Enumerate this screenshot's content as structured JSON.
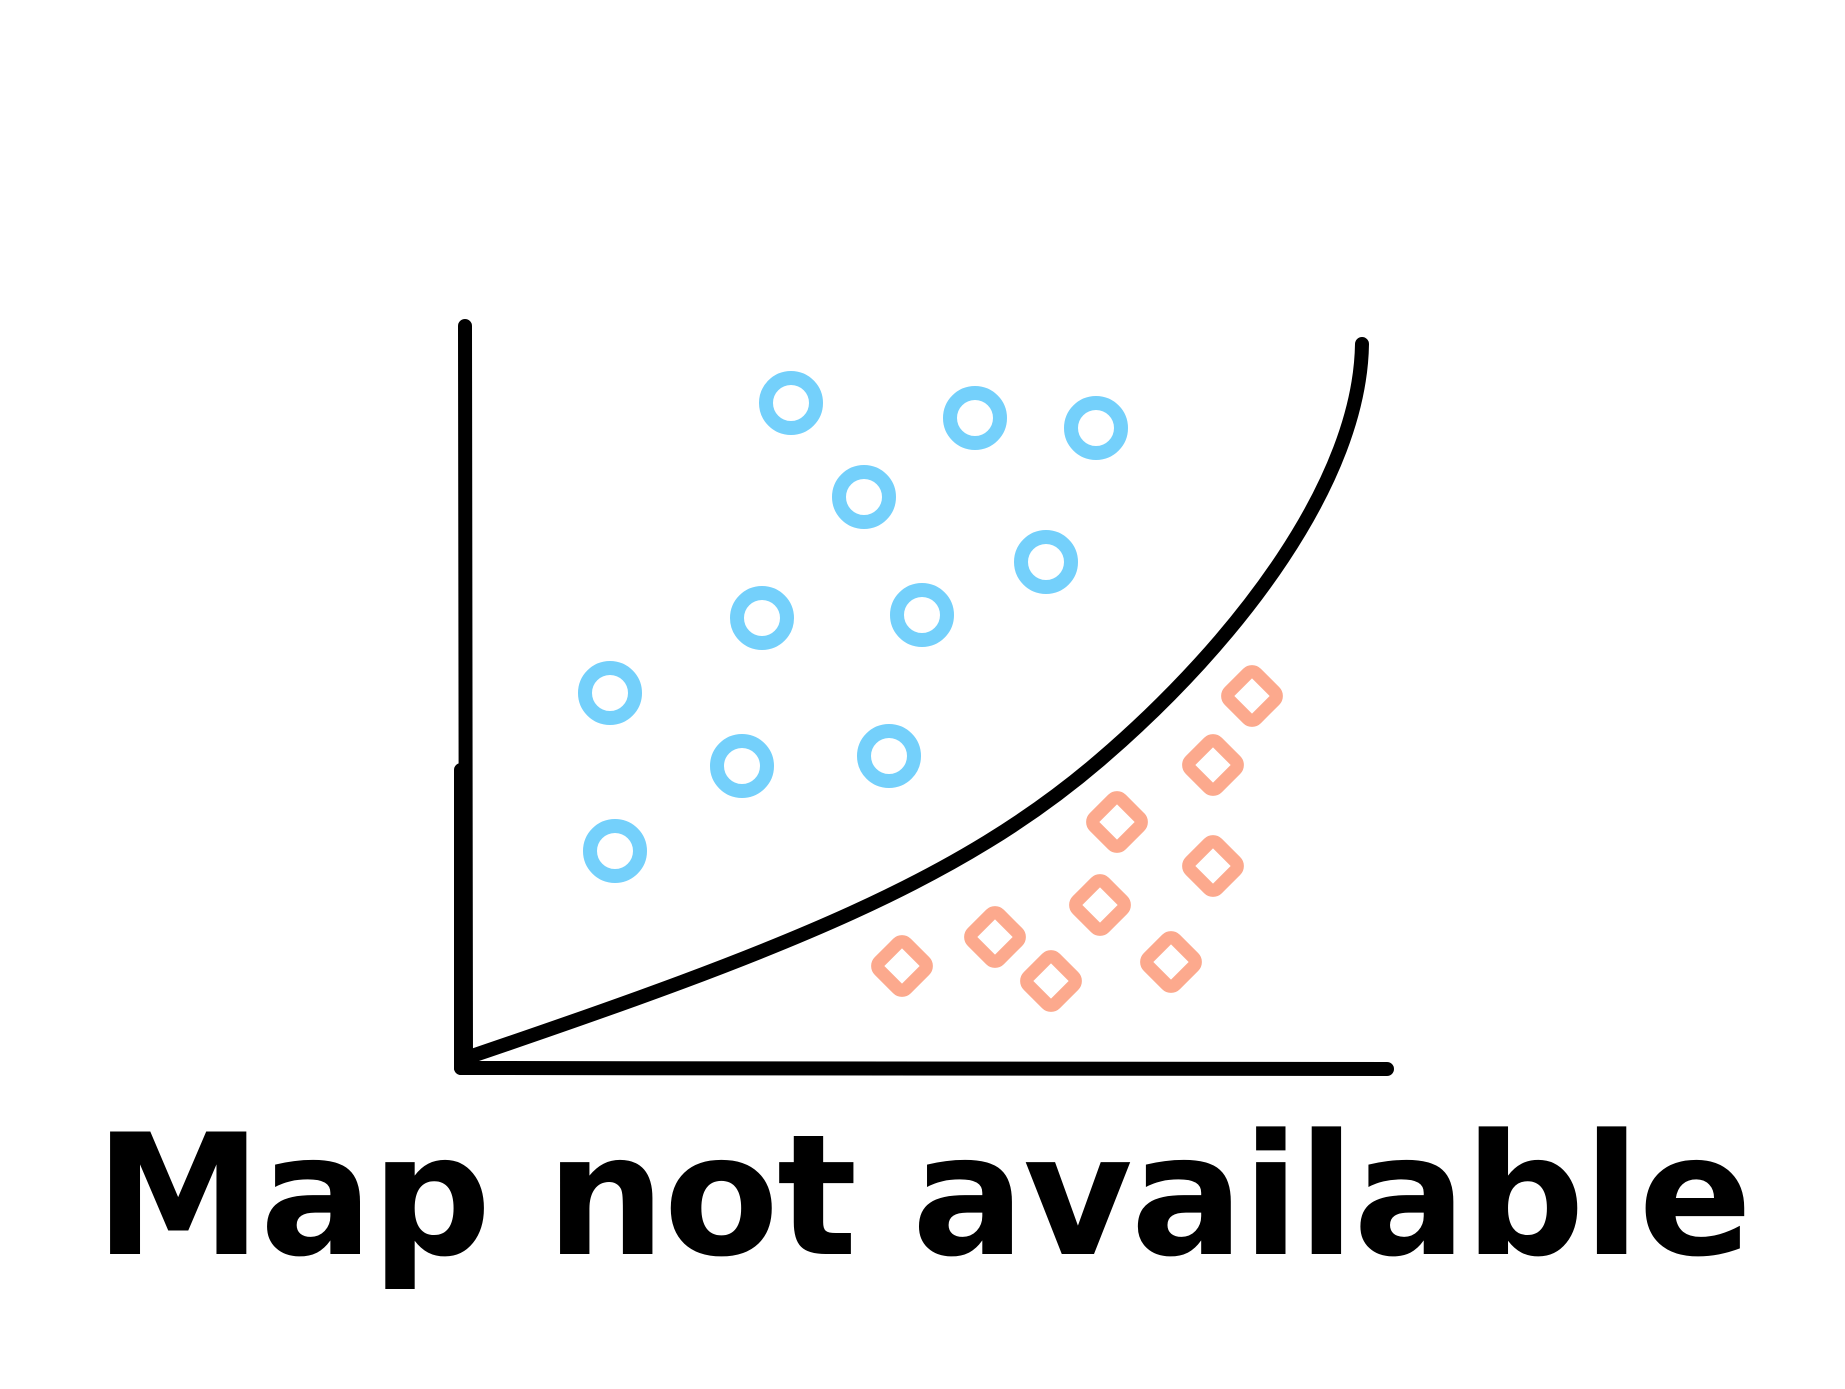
{
  "message": {
    "text": "Map not available",
    "color": "#000000"
  },
  "illustration": {
    "icon": "scatter-plot-placeholder-icon",
    "axis_color": "#000000",
    "curve_color": "#000000",
    "class_a_color": "#74d0fb",
    "class_b_color": "#fca98d"
  }
}
